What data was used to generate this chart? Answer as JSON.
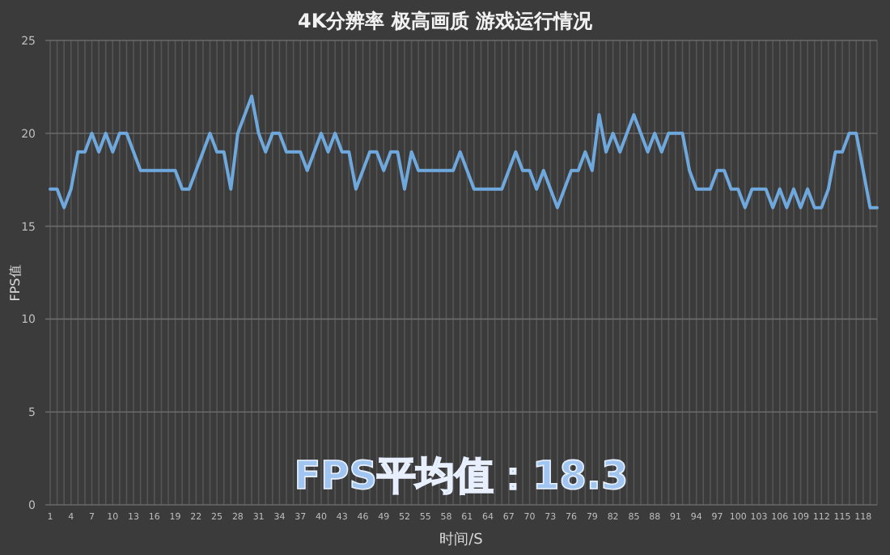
{
  "chart_data": {
    "type": "line",
    "title": "4K分辨率 极高画质 游戏运行情况",
    "xlabel": "时间/S",
    "ylabel": "FPS值",
    "annotations": [
      "FPS平均值：18.3"
    ],
    "categories": [
      "1",
      null,
      null,
      "4",
      null,
      null,
      "7",
      null,
      null,
      "10",
      null,
      null,
      "13",
      null,
      null,
      "16",
      null,
      null,
      "19",
      null,
      null,
      "22",
      null,
      null,
      "25",
      null,
      null,
      "28",
      null,
      null,
      "31",
      null,
      null,
      "34",
      null,
      null,
      "37",
      null,
      null,
      "40",
      null,
      null,
      "43",
      null,
      null,
      "46",
      null,
      null,
      "49",
      null,
      null,
      "52",
      null,
      null,
      "55",
      null,
      null,
      "58",
      null,
      null,
      "61",
      null,
      null,
      "64",
      null,
      null,
      "67",
      null,
      null,
      "70",
      null,
      null,
      "73",
      null,
      null,
      "76",
      null,
      null,
      "79",
      null,
      null,
      "82",
      null,
      null,
      "85",
      null,
      null,
      "88",
      null,
      null,
      "91",
      null,
      null,
      "94",
      null,
      null,
      "97",
      null,
      null,
      "100",
      null,
      null,
      "103",
      null,
      null,
      "106",
      null,
      null,
      "109",
      null,
      null,
      "112",
      null,
      null,
      "115",
      null,
      null,
      "118",
      null,
      null
    ],
    "series": [
      {
        "color": "#6fa8dc",
        "values": [
          17,
          17,
          16,
          17,
          19,
          19,
          20,
          19,
          20,
          19,
          20,
          20,
          19,
          18,
          18,
          18,
          18,
          18,
          18,
          17,
          17,
          18,
          19,
          20,
          19,
          19,
          17,
          20,
          21,
          22,
          20,
          19,
          20,
          20,
          19,
          19,
          19,
          18,
          19,
          20,
          19,
          20,
          19,
          19,
          17,
          18,
          19,
          19,
          18,
          19,
          19,
          17,
          19,
          18,
          18,
          18,
          18,
          18,
          18,
          19,
          18,
          17,
          17,
          17,
          17,
          17,
          18,
          19,
          18,
          18,
          17,
          18,
          17,
          16,
          17,
          18,
          18,
          19,
          18,
          21,
          19,
          20,
          19,
          20,
          21,
          20,
          19,
          20,
          19,
          20,
          20,
          20,
          18,
          17,
          17,
          17,
          18,
          18,
          17,
          17,
          16,
          17,
          17,
          17,
          16,
          17,
          16,
          17,
          16,
          17,
          16,
          16,
          17,
          19,
          19,
          20,
          20,
          18,
          16,
          16
        ]
      }
    ],
    "ylim": [
      0,
      25
    ],
    "yticks": [
      0,
      5,
      10,
      15,
      20,
      25
    ],
    "grid": true
  }
}
